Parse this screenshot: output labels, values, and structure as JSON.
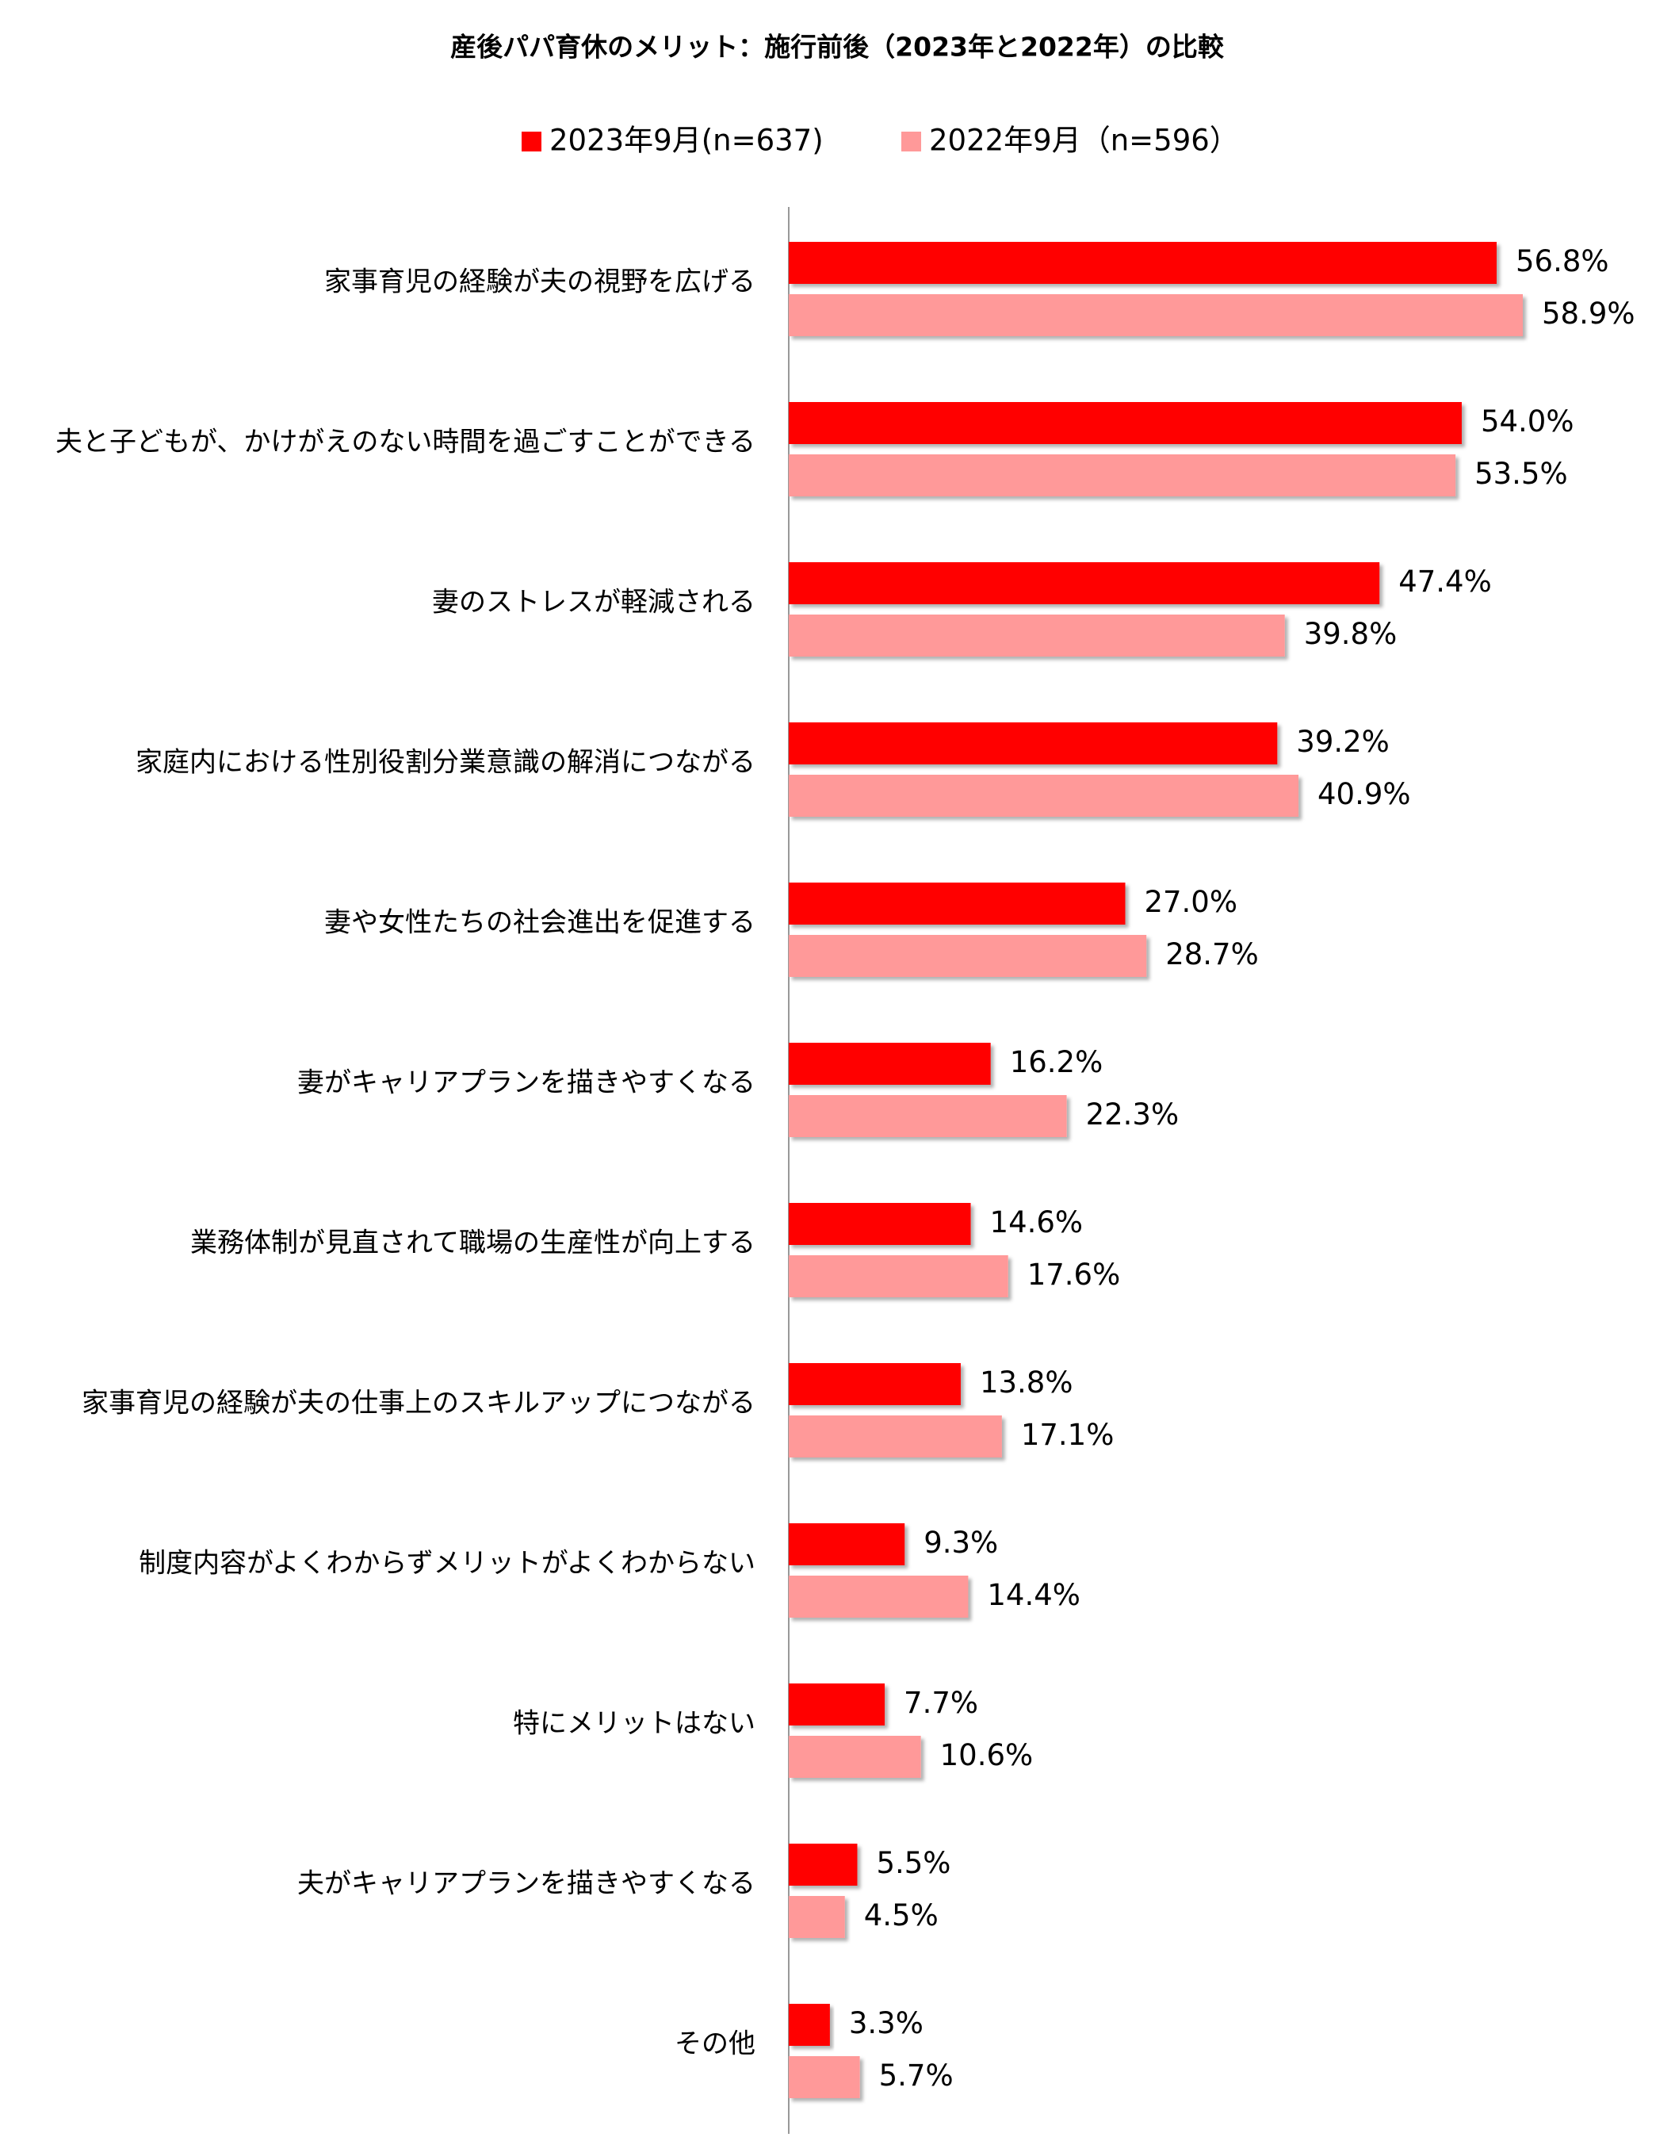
{
  "chart_data": {
    "type": "bar",
    "orientation": "horizontal",
    "title": "産後パパ育休のメリット：施行前後（2023年と2022年）の比較",
    "categories": [
      "家事育児の経験が夫の視野を広げる",
      "夫と子どもが、かけがえのない時間を過ごすことができる",
      "妻のストレスが軽減される",
      "家庭内における性別役割分業意識の解消につながる",
      "妻や女性たちの社会進出を促進する",
      "妻がキャリアプランを描きやすくなる",
      "業務体制が見直されて職場の生産性が向上する",
      "家事育児の経験が夫の仕事上のスキルアップにつながる",
      "制度内容がよくわからずメリットがよくわからない",
      "特にメリットはない",
      "夫がキャリアプランを描きやすくなる",
      "その他"
    ],
    "series": [
      {
        "name": "2023年9月(n=637)",
        "color": "#ff0000",
        "values": [
          56.8,
          54.0,
          47.4,
          39.2,
          27.0,
          16.2,
          14.6,
          13.8,
          9.3,
          7.7,
          5.5,
          3.3
        ],
        "value_labels": [
          "56.8%",
          "54.0%",
          "47.4%",
          "39.2%",
          "27.0%",
          "16.2%",
          "14.6%",
          "13.8%",
          "9.3%",
          "7.7%",
          "5.5%",
          "3.3%"
        ]
      },
      {
        "name": "2022年9月（n=596）",
        "color": "#ff9999",
        "values": [
          58.9,
          53.5,
          39.8,
          40.9,
          28.7,
          22.3,
          17.6,
          17.1,
          14.4,
          10.6,
          4.5,
          5.7
        ],
        "value_labels": [
          "58.9%",
          "53.5%",
          "39.8%",
          "40.9%",
          "28.7%",
          "22.3%",
          "17.6%",
          "17.1%",
          "14.4%",
          "10.6%",
          "4.5%",
          "5.7%"
        ]
      }
    ],
    "legend_position": "top"
  }
}
